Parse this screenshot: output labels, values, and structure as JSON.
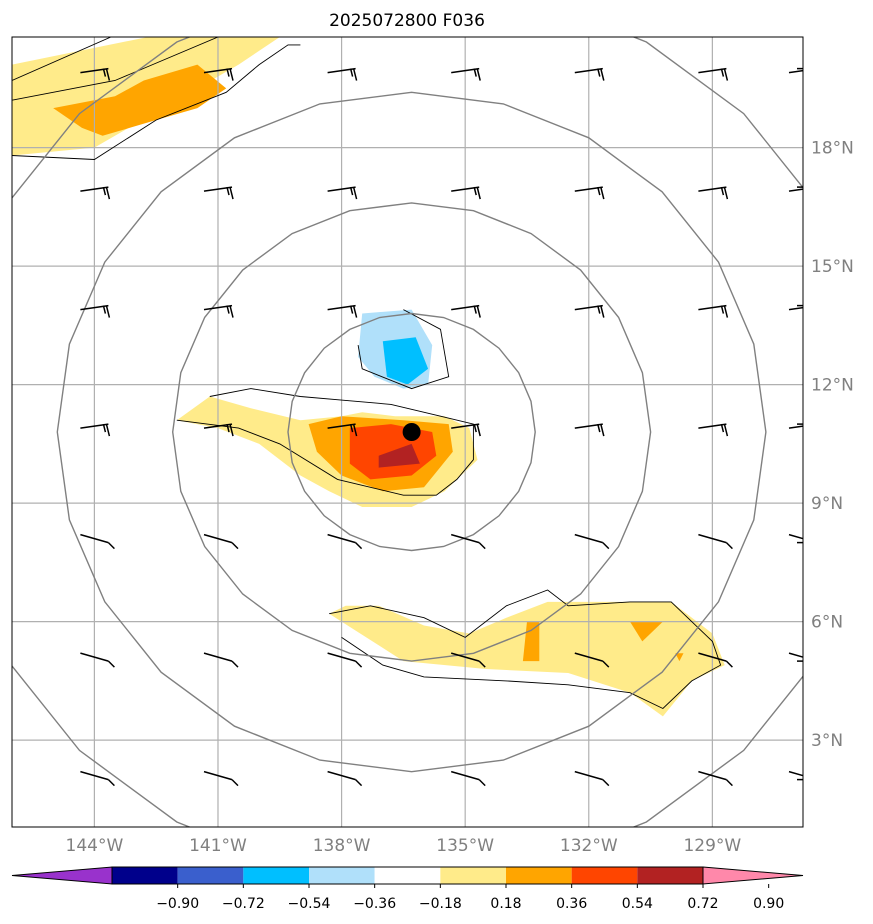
{
  "title": "2025072800 F036",
  "map": {
    "lon_range": [
      -146,
      -126.8
    ],
    "lat_range": [
      0.8,
      20.8
    ],
    "lon_ticks": [
      {
        "value": -144,
        "label": "144°W"
      },
      {
        "value": -141,
        "label": "141°W"
      },
      {
        "value": -138,
        "label": "138°W"
      },
      {
        "value": -135,
        "label": "135°W"
      },
      {
        "value": -132,
        "label": "132°W"
      },
      {
        "value": -129,
        "label": "129°W"
      }
    ],
    "lat_ticks": [
      {
        "value": 3,
        "label": "3°N"
      },
      {
        "value": 6,
        "label": "6°N"
      },
      {
        "value": 9,
        "label": "9°N"
      },
      {
        "value": 12,
        "label": "12°N"
      },
      {
        "value": 15,
        "label": "15°N"
      },
      {
        "value": 18,
        "label": "18°N"
      }
    ],
    "storm_center": {
      "lon": -136.3,
      "lat": 10.8
    },
    "range_rings_deg": [
      3,
      5.8,
      8.6,
      11.4
    ],
    "colors": {
      "c0.18": "#ffeb8a",
      "c0.36": "#ffa500",
      "c0.54": "#ff4500",
      "c0.72": "#b22222",
      "cm0.18": "#b0e0fa",
      "cm0.36": "#00bfff",
      "ring": "#808080",
      "grid": "#b0b0b0"
    },
    "fields": [
      {
        "level": "0.18",
        "color_key": "c0.18",
        "polys": [
          [
            [
              -146,
              20.1
            ],
            [
              -142.7,
              20.8
            ],
            [
              -139.5,
              20.8
            ],
            [
              -140.5,
              20.1
            ],
            [
              -141.5,
              19.5
            ],
            [
              -143,
              18.6
            ],
            [
              -144,
              18
            ],
            [
              -146,
              17.8
            ]
          ],
          [
            [
              -142,
              11.1
            ],
            [
              -141.2,
              11.7
            ],
            [
              -140.2,
              11.4
            ],
            [
              -139,
              11.1
            ],
            [
              -138,
              11.2
            ],
            [
              -137.5,
              11.3
            ],
            [
              -136.7,
              11.2
            ],
            [
              -135.5,
              11.2
            ],
            [
              -134.9,
              10.9
            ],
            [
              -134.7,
              10.1
            ],
            [
              -135.5,
              9.3
            ],
            [
              -136.3,
              8.9
            ],
            [
              -137.5,
              8.9
            ],
            [
              -138.3,
              9.3
            ],
            [
              -139,
              9.7
            ],
            [
              -140,
              10.5
            ],
            [
              -141,
              10.9
            ]
          ],
          [
            [
              -138.3,
              6.2
            ],
            [
              -137.9,
              6.4
            ],
            [
              -137.1,
              6.4
            ],
            [
              -136,
              5.9
            ],
            [
              -134.9,
              5.7
            ],
            [
              -134,
              6.1
            ],
            [
              -133,
              6.5
            ],
            [
              -131.5,
              6.5
            ],
            [
              -130,
              6.5
            ],
            [
              -129,
              5.7
            ],
            [
              -128.7,
              4.9
            ],
            [
              -129.5,
              4.5
            ],
            [
              -130.2,
              3.6
            ],
            [
              -131,
              4.2
            ],
            [
              -132.5,
              4.7
            ],
            [
              -134.5,
              4.8
            ],
            [
              -136.5,
              5
            ]
          ]
        ]
      },
      {
        "level": "0.36",
        "color_key": "c0.36",
        "polys": [
          [
            [
              -143.5,
              19.3
            ],
            [
              -142.8,
              19.7
            ],
            [
              -141.5,
              20.1
            ],
            [
              -140.8,
              19.5
            ],
            [
              -141.5,
              19
            ],
            [
              -142.5,
              18.7
            ],
            [
              -143.8,
              18.3
            ],
            [
              -144.3,
              18.5
            ],
            [
              -145,
              19
            ]
          ],
          [
            [
              -138.8,
              11
            ],
            [
              -138,
              11.2
            ],
            [
              -136.5,
              11.1
            ],
            [
              -135.4,
              11
            ],
            [
              -135.3,
              10.3
            ],
            [
              -136,
              9.4
            ],
            [
              -137,
              9.3
            ],
            [
              -138,
              9.7
            ],
            [
              -138.6,
              10.3
            ]
          ],
          [
            [
              -133.5,
              6
            ],
            [
              -133.2,
              6
            ],
            [
              -133.2,
              5
            ],
            [
              -133.6,
              5
            ]
          ],
          [
            [
              -131,
              6
            ],
            [
              -130.2,
              6
            ],
            [
              -130.7,
              5.5
            ]
          ],
          [
            [
              -129.9,
              5.2
            ],
            [
              -129.7,
              5.2
            ],
            [
              -129.8,
              5
            ]
          ]
        ]
      },
      {
        "level": "0.54",
        "color_key": "c0.54",
        "polys": [
          [
            [
              -137.8,
              10.9
            ],
            [
              -136.8,
              11
            ],
            [
              -135.8,
              10.8
            ],
            [
              -135.7,
              10.2
            ],
            [
              -136.3,
              9.7
            ],
            [
              -137.3,
              9.6
            ],
            [
              -137.8,
              10
            ]
          ]
        ]
      },
      {
        "level": "0.72",
        "color_key": "c0.72",
        "polys": [
          [
            [
              -137.1,
              10.2
            ],
            [
              -136.3,
              10.5
            ],
            [
              -136.1,
              10
            ],
            [
              -137.1,
              9.9
            ]
          ]
        ]
      },
      {
        "level": "-0.18",
        "color_key": "cm0.18",
        "polys": [
          [
            [
              -137.5,
              13.8
            ],
            [
              -136.3,
              13.9
            ],
            [
              -135.8,
              13
            ],
            [
              -135.9,
              12
            ],
            [
              -136.5,
              11.9
            ],
            [
              -137.2,
              12.2
            ],
            [
              -137.6,
              12.7
            ]
          ]
        ]
      },
      {
        "level": "-0.36",
        "color_key": "cm0.36",
        "polys": [
          [
            [
              -137,
              13.1
            ],
            [
              -136.2,
              13.2
            ],
            [
              -135.9,
              12.4
            ],
            [
              -136.4,
              12
            ],
            [
              -136.9,
              12.2
            ]
          ]
        ]
      }
    ],
    "contours": [
      [
        [
          -146,
          19.7
        ],
        [
          -143.6,
          20.8
        ]
      ],
      [
        [
          -146,
          17.8
        ],
        [
          -144,
          17.7
        ],
        [
          -142.5,
          18.7
        ],
        [
          -140.8,
          19.4
        ],
        [
          -140,
          20.1
        ],
        [
          -139.3,
          20.6
        ],
        [
          -139,
          20.6
        ]
      ],
      [
        [
          -146,
          19.2
        ],
        [
          -143.5,
          19.7
        ],
        [
          -141,
          20.8
        ]
      ],
      [
        [
          -141.2,
          11.7
        ],
        [
          -140.2,
          11.9
        ],
        [
          -139,
          11.7
        ],
        [
          -137.9,
          11.6
        ],
        [
          -136.8,
          11.5
        ],
        [
          -135.6,
          11.2
        ],
        [
          -134.8,
          11
        ],
        [
          -134.8,
          10.1
        ],
        [
          -135.2,
          9.6
        ],
        [
          -135.7,
          9.2
        ],
        [
          -136.5,
          9.2
        ],
        [
          -138.1,
          9.6
        ],
        [
          -139.5,
          10.5
        ],
        [
          -140.5,
          10.9
        ],
        [
          -142,
          11.1
        ]
      ],
      [
        [
          -138.3,
          6.2
        ],
        [
          -137.3,
          6.4
        ],
        [
          -136,
          6.1
        ],
        [
          -135,
          5.6
        ],
        [
          -134,
          6.4
        ],
        [
          -133,
          6.8
        ],
        [
          -132.5,
          6.4
        ],
        [
          -131,
          6.5
        ],
        [
          -130,
          6.5
        ],
        [
          -129,
          5.5
        ],
        [
          -128.8,
          4.9
        ],
        [
          -129.5,
          4.5
        ],
        [
          -130.2,
          3.8
        ],
        [
          -131,
          4.2
        ],
        [
          -132.5,
          4.4
        ],
        [
          -134,
          4.5
        ],
        [
          -136,
          4.6
        ],
        [
          -137,
          4.9
        ],
        [
          -138,
          5.6
        ]
      ],
      [
        [
          -136.5,
          13.9
        ],
        [
          -135.6,
          13.4
        ],
        [
          -135.4,
          12.2
        ],
        [
          -136.3,
          11.9
        ],
        [
          -137.5,
          12.4
        ],
        [
          -137.6,
          13
        ]
      ]
    ],
    "barbs": {
      "lons": [
        -144,
        -141,
        -138,
        -135,
        -132,
        -129,
        -126.8
      ],
      "lats": [
        2,
        5,
        8,
        11,
        14,
        17,
        20
      ]
    },
    "colorbar": {
      "colors": [
        "#9932cc",
        "#00008b",
        "#3a5fcd",
        "#00bfff",
        "#b0e0fa",
        "#ffffff",
        "#ffeb8a",
        "#ffa500",
        "#ff4500",
        "#b22222",
        "#ff88aa"
      ],
      "labels": [
        "−0.90",
        "−0.72",
        "−0.54",
        "−0.36",
        "−0.18",
        "0.18",
        "0.36",
        "0.54",
        "0.72",
        "0.90"
      ]
    }
  }
}
